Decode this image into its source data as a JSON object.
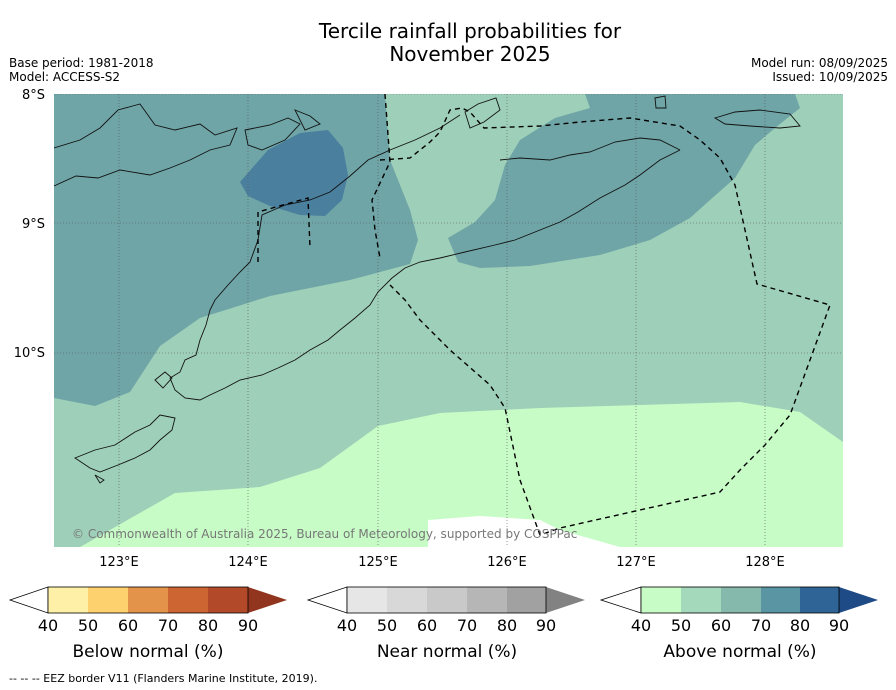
{
  "title": {
    "line1": "Tercile rainfall probabilities for",
    "line2": "November 2025"
  },
  "meta_left": {
    "base_period": "Base period: 1981-2018",
    "model": "Model: ACCESS-S2"
  },
  "meta_right": {
    "model_run": "Model run: 08/09/2025",
    "issued": "Issued: 10/09/2025"
  },
  "map": {
    "latitude_labels": [
      "8°S",
      "9°S",
      "10°S"
    ],
    "longitude_labels": [
      "123°E",
      "124°E",
      "125°E",
      "126°E",
      "127°E",
      "128°E"
    ],
    "copyright": "© Commonwealth of Australia 2025, Bureau of Meteorology, supported by COSPPac"
  },
  "colorbars": [
    {
      "title": "Below normal (%)",
      "ticks": [
        "40",
        "50",
        "60",
        "70",
        "80",
        "90"
      ],
      "colors": [
        "#ffffff",
        "#fff0a8",
        "#fed16f",
        "#e3944a",
        "#cd6533",
        "#b24a29",
        "#92351f"
      ]
    },
    {
      "title": "Near normal (%)",
      "ticks": [
        "40",
        "50",
        "60",
        "70",
        "80",
        "90"
      ],
      "colors": [
        "#ffffff",
        "#e6e6e6",
        "#d8d8d8",
        "#c9c9c9",
        "#b6b6b6",
        "#a1a1a1",
        "#828282"
      ]
    },
    {
      "title": "Above normal (%)",
      "ticks": [
        "40",
        "50",
        "60",
        "70",
        "80",
        "90"
      ],
      "colors": [
        "#ffffff",
        "#c7fcc7",
        "#a4d9bc",
        "#84b9ac",
        "#5a95a4",
        "#2f6496",
        "#1e4a86"
      ]
    }
  ],
  "footnote": "-- -- -- EEZ border V11 (Flanders Marine Institute, 2019)."
}
